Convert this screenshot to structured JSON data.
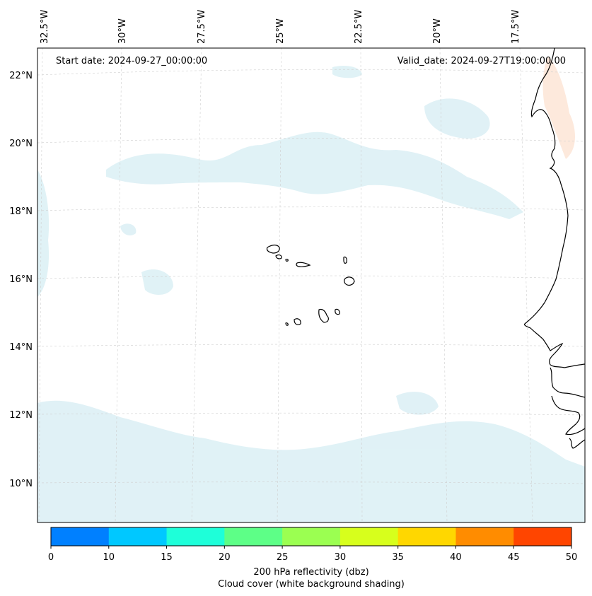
{
  "map": {
    "annotations": {
      "start_date": "Start date: 2024-09-27_00:00:00",
      "valid_date": "Valid_date: 2024-09-27T19:00:00.00"
    },
    "longitude_labels": [
      "32.5°W",
      "30°W",
      "27.5°W",
      "25°W",
      "22.5°W",
      "20°W",
      "17.5°W"
    ],
    "latitude_labels": [
      "22°N",
      "20°N",
      "18°N",
      "16°N",
      "14°N",
      "12°N",
      "10°N"
    ],
    "features": [
      "Cape Verde islands",
      "West African coastline"
    ],
    "shading_color": "#d6edf3",
    "warm_shading_color": "#fde3d3"
  },
  "colorbar": {
    "ticks": [
      "0",
      "10",
      "15",
      "20",
      "25",
      "30",
      "35",
      "40",
      "45",
      "50"
    ],
    "colors": [
      "#0080ff",
      "#00c8ff",
      "#1effd9",
      "#5dff87",
      "#9bff51",
      "#d7ff1c",
      "#ffd700",
      "#ff8c00",
      "#ff4500"
    ],
    "label": "200 hPa reflectivity (dbz)",
    "sublabel": "Cloud cover (white background shading)"
  }
}
